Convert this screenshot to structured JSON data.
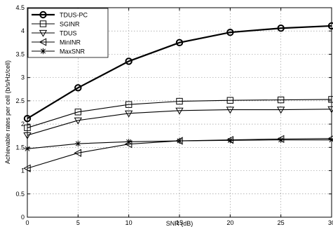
{
  "chart_data": {
    "type": "line",
    "title": "",
    "xlabel": "SNR (dB)",
    "ylabel": "Achievable rates per cell (b/s/Hz/cell)",
    "xlim": [
      0,
      30
    ],
    "ylim": [
      0,
      4.5
    ],
    "xticks": [
      0,
      5,
      10,
      15,
      20,
      25,
      30
    ],
    "yticks": [
      0,
      0.5,
      1,
      1.5,
      2,
      2.5,
      3,
      3.5,
      4,
      4.5
    ],
    "grid": true,
    "legend_position": "top-left",
    "x": [
      0,
      5,
      10,
      15,
      20,
      25,
      30
    ],
    "series": [
      {
        "name": "TDUS-PC",
        "marker": "circle",
        "bold": true,
        "values": [
          2.12,
          2.78,
          3.35,
          3.75,
          3.97,
          4.06,
          4.11
        ]
      },
      {
        "name": "SGINR",
        "marker": "square",
        "bold": false,
        "values": [
          1.92,
          2.26,
          2.42,
          2.49,
          2.51,
          2.52,
          2.53
        ]
      },
      {
        "name": "TDUS",
        "marker": "triangle-down",
        "bold": false,
        "values": [
          1.76,
          2.08,
          2.23,
          2.29,
          2.31,
          2.31,
          2.32
        ]
      },
      {
        "name": "MinINR",
        "marker": "triangle-left",
        "bold": false,
        "values": [
          1.05,
          1.38,
          1.57,
          1.64,
          1.66,
          1.68,
          1.69
        ]
      },
      {
        "name": "MaxSNR",
        "marker": "star",
        "bold": false,
        "values": [
          1.47,
          1.58,
          1.62,
          1.64,
          1.65,
          1.66,
          1.66
        ]
      }
    ]
  }
}
